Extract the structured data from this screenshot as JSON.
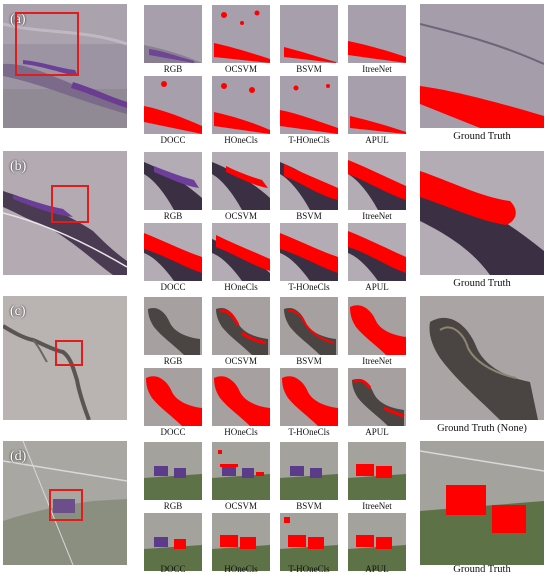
{
  "panels": [
    {
      "letter": "(a)",
      "method_labels": [
        "RGB",
        "OCSVM",
        "BSVM",
        "ItreeNet",
        "DOCC",
        "HOneCls",
        "T-HOneCls",
        "APUL"
      ],
      "ground_truth_label": "Ground Truth"
    },
    {
      "letter": "(b)",
      "method_labels": [
        "RGB",
        "OCSVM",
        "BSVM",
        "ItreeNet",
        "DOCC",
        "HOneCls",
        "T-HOneCls",
        "APUL"
      ],
      "ground_truth_label": "Ground Truth"
    },
    {
      "letter": "(c)",
      "method_labels": [
        "RGB",
        "OCSVM",
        "BSVM",
        "ItreeNet",
        "DOCC",
        "HOneCls",
        "T-HOneCls",
        "APUL"
      ],
      "ground_truth_label": "Ground Truth (None)"
    },
    {
      "letter": "(d)",
      "method_labels": [
        "RGB",
        "OCSVM",
        "BSVM",
        "ItreeNet",
        "DOCC",
        "HOneCls",
        "T-HOneCls",
        "APUL"
      ],
      "ground_truth_label": "Ground Truth"
    }
  ],
  "colors": {
    "highlight_box": "#e21b1b",
    "detection_overlay": "#ff0000"
  }
}
